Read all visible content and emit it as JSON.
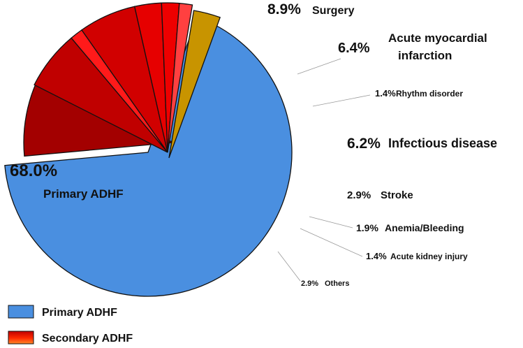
{
  "chart_data": {
    "type": "pie",
    "title": "",
    "slices": [
      {
        "name": "Primary ADHF",
        "percent_label": "68.0%",
        "value": 68.0,
        "group": "Primary ADHF",
        "color": "#4a8fe0"
      },
      {
        "name": "Surgery",
        "percent_label": "8.9%",
        "value": 8.9,
        "group": "Secondary ADHF",
        "color": "#a30000"
      },
      {
        "name": "Acute myocardial infarction",
        "percent_label": "6.4%",
        "value": 6.4,
        "group": "Secondary ADHF",
        "color": "#c00000"
      },
      {
        "name": "Rhythm disorder",
        "percent_label": "1.4%",
        "value": 1.4,
        "group": "Secondary ADHF",
        "color": "#ff1a1a"
      },
      {
        "name": "Infectious disease",
        "percent_label": "6.2%",
        "value": 6.2,
        "group": "Secondary ADHF",
        "color": "#d10000"
      },
      {
        "name": "Stroke",
        "percent_label": "2.9%",
        "value": 2.9,
        "group": "Secondary ADHF",
        "color": "#e60000"
      },
      {
        "name": "Anemia/Bleeding",
        "percent_label": "1.9%",
        "value": 1.9,
        "group": "Secondary ADHF",
        "color": "#ee0000"
      },
      {
        "name": "Acute kidney injury",
        "percent_label": "1.4%",
        "value": 1.4,
        "group": "Secondary ADHF",
        "color": "#ff4040"
      },
      {
        "name": "Others",
        "percent_label": "2.9%",
        "value": 2.9,
        "group": "Others",
        "color": "#c89400"
      }
    ],
    "legend": [
      {
        "label": "Primary ADHF",
        "color": "#4a8fe0"
      },
      {
        "label": "Secondary ADHF",
        "color": "#d00000"
      }
    ],
    "legend_position": "bottom-left"
  }
}
